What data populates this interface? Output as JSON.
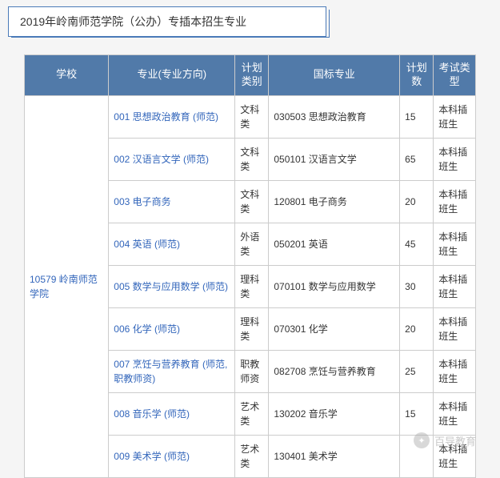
{
  "title": "2019年岭南师范学院（公办）专插本招生专业",
  "columns": {
    "school": "学校",
    "major": "专业(专业方向)",
    "plan_type": "计划类别",
    "std_major": "国标专业",
    "plan_num": "计划数",
    "exam_type": "考试类型"
  },
  "col_widths": {
    "school": "90",
    "major": "135",
    "plan_type": "36",
    "std_major": "140",
    "plan_num": "36",
    "exam_type": "45"
  },
  "school": "10579 岭南师范学院",
  "rows": [
    {
      "major": "001 思想政治教育 (师范)",
      "plan_type": "文科类",
      "std_major": "030503 思想政治教育",
      "plan_num": "15",
      "exam_type": "本科插班生"
    },
    {
      "major": "002 汉语言文学 (师范)",
      "plan_type": "文科类",
      "std_major": "050101 汉语言文学",
      "plan_num": "65",
      "exam_type": "本科插班生"
    },
    {
      "major": "003 电子商务",
      "plan_type": "文科类",
      "std_major": "120801 电子商务",
      "plan_num": "20",
      "exam_type": "本科插班生"
    },
    {
      "major": "004 英语 (师范)",
      "plan_type": "外语类",
      "std_major": "050201 英语",
      "plan_num": "45",
      "exam_type": "本科插班生"
    },
    {
      "major": "005 数学与应用数学 (师范)",
      "plan_type": "理科类",
      "std_major": "070101 数学与应用数学",
      "plan_num": "30",
      "exam_type": "本科插班生"
    },
    {
      "major": "006 化学 (师范)",
      "plan_type": "理科类",
      "std_major": "070301 化学",
      "plan_num": "20",
      "exam_type": "本科插班生"
    },
    {
      "major": "007 烹饪与营养教育 (师范, 职教师资)",
      "plan_type": "职教师资",
      "std_major": "082708 烹饪与营养教育",
      "plan_num": "25",
      "exam_type": "本科插班生"
    },
    {
      "major": "008 音乐学 (师范)",
      "plan_type": "艺术类",
      "std_major": "130202 音乐学",
      "plan_num": "15",
      "exam_type": "本科插班生"
    },
    {
      "major": "009 美术学 (师范)",
      "plan_type": "艺术类",
      "std_major": "130401 美术学",
      "plan_num": "",
      "exam_type": "本科插班生"
    }
  ],
  "watermark": "百导教育",
  "colors": {
    "header_bg": "#517aa9",
    "header_fg": "#ffffff",
    "link": "#3366bb",
    "border": "#cccccc",
    "title_border": "#4a7ab8",
    "body_bg": "#f5f5f5"
  }
}
